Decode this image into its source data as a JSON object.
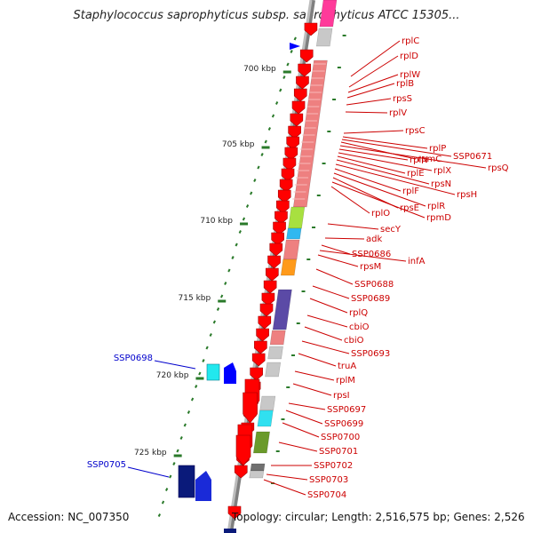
{
  "title": "Staphylococcus saprophyticus subsp. saprophyticus ATCC 15305...",
  "accession": "Accession: NC_007350",
  "topology": "Topology: circular; Length: 2,516,575 bp; Genes: 2,526",
  "colors": {
    "backbone": "#7f7f7f",
    "forward_gene": "#ff0000",
    "reverse_gene": "#0000ff",
    "forward_label": "#cc0000",
    "reverse_label": "#0000cc",
    "scale_tick": "#2a7a2a"
  },
  "scale_labels": [
    "700 kbp",
    "705 kbp",
    "710 kbp",
    "715 kbp",
    "720 kbp",
    "725 kbp"
  ],
  "forward_labels": [
    "rplC",
    "rplD",
    "rplW",
    "rplB",
    "rpsS",
    "rplV",
    "rpsC",
    "rplP",
    "SSP0671",
    "rpmC",
    "rpsQ",
    "rplN",
    "rplX",
    "rplE",
    "rpsN",
    "rpsH",
    "rplF",
    "rplR",
    "rpsE",
    "rpmD",
    "rplO",
    "secY",
    "adk",
    "SSP0686",
    "infA",
    "rpsM",
    "SSP0688",
    "SSP0689",
    "rplQ",
    "cbiO",
    "cbiO",
    "SSP0693",
    "truA",
    "rplM",
    "rpsI",
    "SSP0697",
    "SSP0699",
    "SSP0700",
    "SSP0701",
    "SSP0702",
    "SSP0703",
    "SSP0704"
  ],
  "reverse_labels": [
    "SSP0698",
    "SSP0705"
  ]
}
